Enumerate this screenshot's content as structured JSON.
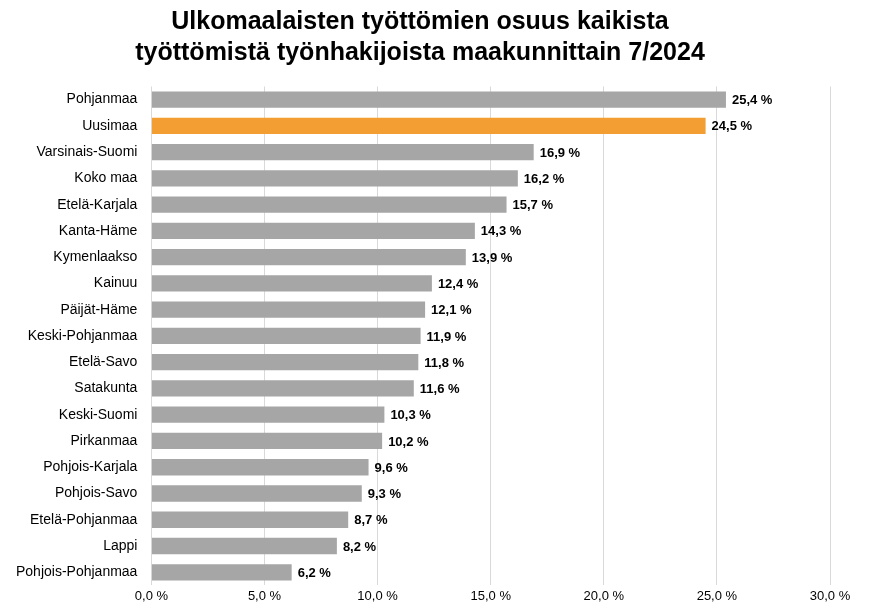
{
  "chart_data": {
    "type": "bar",
    "orientation": "horizontal",
    "title": [
      "Ulkomaalaisten työttömien osuus kaikista",
      "työttömistä työnhakijoista maakunnittain 7/2024"
    ],
    "categories": [
      "Pohjanmaa",
      "Uusimaa",
      "Varsinais-Suomi",
      "Koko maa",
      "Etelä-Karjala",
      "Kanta-Häme",
      "Kymenlaakso",
      "Kainuu",
      "Päijät-Häme",
      "Keski-Pohjanmaa",
      "Etelä-Savo",
      "Satakunta",
      "Keski-Suomi",
      "Pirkanmaa",
      "Pohjois-Karjala",
      "Pohjois-Savo",
      "Etelä-Pohjanmaa",
      "Lappi",
      "Pohjois-Pohjanmaa"
    ],
    "values": [
      25.4,
      24.5,
      16.9,
      16.2,
      15.7,
      14.3,
      13.9,
      12.4,
      12.1,
      11.9,
      11.8,
      11.6,
      10.3,
      10.2,
      9.6,
      9.3,
      8.7,
      8.2,
      6.2
    ],
    "value_labels": [
      "25,4 %",
      "24,5 %",
      "16,9 %",
      "16,2 %",
      "15,7 %",
      "14,3 %",
      "13,9 %",
      "12,4 %",
      "12,1 %",
      "11,9 %",
      "11,8 %",
      "11,6 %",
      "10,3 %",
      "10,2 %",
      "9,6 %",
      "9,3 %",
      "8,7 %",
      "8,2 %",
      "6,2 %"
    ],
    "colors": [
      "#a6a6a6",
      "#f29e32",
      "#a6a6a6",
      "#a6a6a6",
      "#a6a6a6",
      "#a6a6a6",
      "#a6a6a6",
      "#a6a6a6",
      "#a6a6a6",
      "#a6a6a6",
      "#a6a6a6",
      "#a6a6a6",
      "#a6a6a6",
      "#a6a6a6",
      "#a6a6a6",
      "#a6a6a6",
      "#a6a6a6",
      "#a6a6a6",
      "#a6a6a6"
    ],
    "xlim": [
      0,
      30
    ],
    "xticks": [
      {
        "value": 0,
        "label": "0,0 %"
      },
      {
        "value": 5,
        "label": "5,0 %"
      },
      {
        "value": 10,
        "label": "10,0 %"
      },
      {
        "value": 15,
        "label": "15,0 %"
      },
      {
        "value": 20,
        "label": "20,0 %"
      },
      {
        "value": 25,
        "label": "25,0 %"
      },
      {
        "value": 30,
        "label": "30,0 %"
      }
    ],
    "grid": true,
    "data_labels": true
  }
}
